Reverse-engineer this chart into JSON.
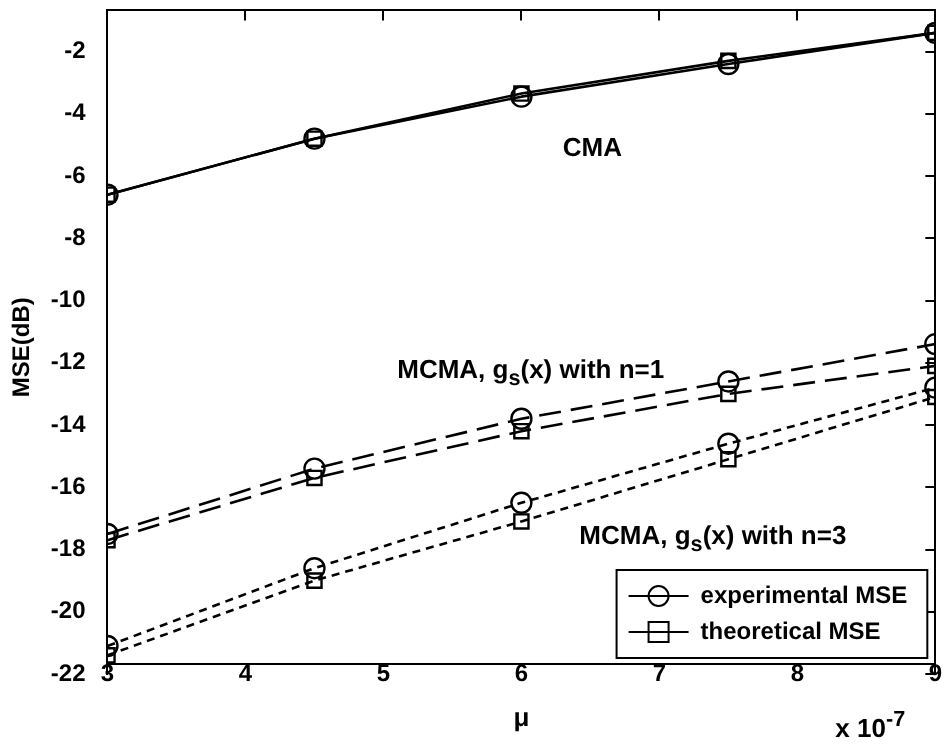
{
  "chart_data": {
    "type": "line",
    "xlabel": "μ",
    "ylabel": "MSE(dB)",
    "x": [
      3,
      4.5,
      6,
      7.5,
      9
    ],
    "series": [
      {
        "name": "experimental MSE",
        "color": "#000000",
        "marker": "circle",
        "line_style": "solid",
        "values": [
          -6.6,
          -4.8,
          -3.45,
          -2.4,
          -1.4
        ]
      },
      {
        "name": "theoretical MSE",
        "color": "#000000",
        "marker": "square",
        "line_style": "solid",
        "values": [
          -6.6,
          -4.8,
          -3.35,
          -2.3,
          -1.4
        ]
      },
      {
        "color": "#000000",
        "marker": "circle",
        "line_style": "dashed",
        "values": [
          -17.5,
          -15.4,
          -13.8,
          -12.6,
          -11.4
        ]
      },
      {
        "color": "#000000",
        "marker": "square",
        "line_style": "dashed",
        "values": [
          -17.7,
          -15.7,
          -14.2,
          -13.0,
          -12.1
        ]
      },
      {
        "color": "#000000",
        "marker": "circle",
        "line_style": "dotted",
        "values": [
          -21.1,
          -18.6,
          -16.5,
          -14.6,
          -12.8
        ]
      },
      {
        "color": "#000000",
        "marker": "square",
        "line_style": "dotted",
        "values": [
          -21.4,
          -19.0,
          -17.1,
          -15.1,
          -13.1
        ]
      }
    ],
    "xlim": [
      3,
      9
    ],
    "xticks": [
      3,
      4,
      5,
      6,
      7,
      8,
      9
    ],
    "ylim": [
      -22,
      -1
    ],
    "yticks": [
      -22,
      -20,
      -18,
      -16,
      -14,
      -12,
      -10,
      -8,
      -6,
      -4,
      -2
    ],
    "annotations": [
      "CMA",
      "MCMA, g$_{s}$(x) with n=1",
      "MCMA, g$_{s}$(x) with n=3",
      "x 10$^{-7}$"
    ],
    "grid": false,
    "legend": "bottom right"
  }
}
